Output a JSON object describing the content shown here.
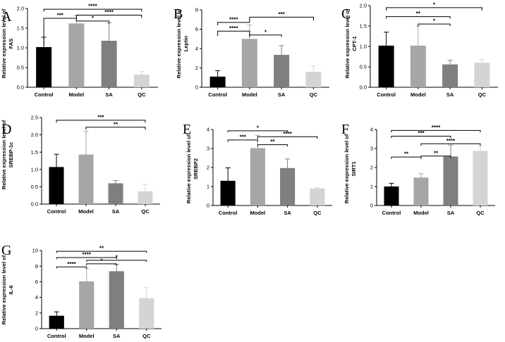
{
  "figure": {
    "colors": [
      "#000000",
      "#a6a6a7",
      "#7f7f80",
      "#d4d4d4"
    ]
  },
  "chart_data": [
    {
      "type": "bar",
      "panel": "A",
      "ylabel_line1": "Relative expression level of",
      "ylabel_line2": "FAS",
      "categories": [
        "Control",
        "Model",
        "SA",
        "QC"
      ],
      "values": [
        1.02,
        1.62,
        1.18,
        0.32
      ],
      "errors": [
        0.25,
        0.2,
        0.45,
        0.08
      ],
      "ylim": [
        0,
        2.0
      ],
      "yticks": [
        "0.0",
        "0.5",
        "1.0",
        "1.5",
        "2.0"
      ],
      "significance": [
        {
          "from": 0,
          "to": 1,
          "label": "***",
          "level": 1.75,
          "anchor_from": 1.06,
          "anchor_to": 1.69
        },
        {
          "from": 1,
          "to": 2,
          "label": "*",
          "level": 1.68,
          "anchor_from": 1.69,
          "anchor_to": 1.62
        },
        {
          "from": 0,
          "to": 3,
          "label": "****",
          "level": 1.98,
          "anchor_from": 1.92,
          "anchor_to": 1.92
        },
        {
          "from": 1,
          "to": 3,
          "label": "****",
          "level": 1.83,
          "anchor_from": 1.76,
          "anchor_to": 1.76
        }
      ]
    },
    {
      "type": "bar",
      "panel": "B",
      "ylabel_line1": "Relative expression level of",
      "ylabel_line2": "Leptin",
      "categories": [
        "Control",
        "Model",
        "SA",
        "QC"
      ],
      "values": [
        1.1,
        5.0,
        3.35,
        1.6
      ],
      "errors": [
        0.62,
        1.45,
        0.95,
        0.6
      ],
      "ylim": [
        0,
        8
      ],
      "yticks": [
        "0",
        "2",
        "4",
        "6",
        "8"
      ],
      "significance": [
        {
          "from": 0,
          "to": 1,
          "label": "****",
          "level": 5.8,
          "anchor_from": 5.3,
          "anchor_to": 5.3
        },
        {
          "from": 1,
          "to": 2,
          "label": "*",
          "level": 5.4,
          "anchor_from": 5.2,
          "anchor_to": 5.2
        },
        {
          "from": 0,
          "to": 1,
          "label": "****",
          "level": 6.7,
          "anchor_from": 6.4,
          "anchor_to": 6.7
        },
        {
          "from": 1,
          "to": 3,
          "label": "***",
          "level": 7.25,
          "anchor_from": 6.7,
          "anchor_to": 6.9
        }
      ]
    },
    {
      "type": "bar",
      "panel": "C",
      "ylabel_line1": "Relative expression level of",
      "ylabel_line2": "CPT-1",
      "categories": [
        "Control",
        "Model",
        "SA",
        "QC"
      ],
      "values": [
        1.02,
        1.02,
        0.56,
        0.6
      ],
      "errors": [
        0.33,
        0.48,
        0.1,
        0.08
      ],
      "ylim": [
        0,
        2.0
      ],
      "yticks": [
        "0.0",
        "0.5",
        "1.0",
        "1.5",
        "2.0"
      ],
      "significance": [
        {
          "from": 0,
          "to": 2,
          "label": "**",
          "level": 1.73,
          "anchor_from": 1.68,
          "anchor_to": 1.68
        },
        {
          "from": 1,
          "to": 2,
          "label": "*",
          "level": 1.55,
          "anchor_from": 1.5,
          "anchor_to": 1.5
        },
        {
          "from": 0,
          "to": 3,
          "label": "*",
          "level": 1.95,
          "anchor_from": 1.88,
          "anchor_to": 1.88
        }
      ]
    },
    {
      "type": "bar",
      "panel": "D",
      "ylabel_line1": "Relative expression level of",
      "ylabel_line2": "SREBP-1c",
      "categories": [
        "Control",
        "Model",
        "SA",
        "QC"
      ],
      "values": [
        1.07,
        1.43,
        0.6,
        0.37
      ],
      "errors": [
        0.37,
        0.67,
        0.08,
        0.2
      ],
      "ylim": [
        0,
        2.5
      ],
      "yticks": [
        "0.0",
        "0.5",
        "1.0",
        "1.5",
        "2.0",
        "2.5"
      ],
      "significance": [
        {
          "from": 0,
          "to": 3,
          "label": "***",
          "level": 2.42,
          "anchor_from": 2.35,
          "anchor_to": 2.35
        },
        {
          "from": 1,
          "to": 3,
          "label": "**",
          "level": 2.22,
          "anchor_from": 2.15,
          "anchor_to": 2.15
        }
      ]
    },
    {
      "type": "bar",
      "panel": "E",
      "ylabel_line1": "Relative expression level of",
      "ylabel_line2": "SREBP2",
      "categories": [
        "Control",
        "Model",
        "SA",
        "QC"
      ],
      "values": [
        1.3,
        3.02,
        1.97,
        0.9
      ],
      "errors": [
        0.68,
        0.67,
        0.48,
        0.04
      ],
      "ylim": [
        0,
        4
      ],
      "yticks": [
        "0",
        "1",
        "2",
        "3",
        "4"
      ],
      "significance": [
        {
          "from": 0,
          "to": 2,
          "label": "*",
          "level": 3.93,
          "anchor_from": 3.85,
          "anchor_to": 3.85
        },
        {
          "from": 0,
          "to": 1,
          "label": "***",
          "level": 3.45,
          "anchor_from": 3.35,
          "anchor_to": 3.35
        },
        {
          "from": 1,
          "to": 2,
          "label": "**",
          "level": 3.2,
          "anchor_from": 3.1,
          "anchor_to": 3.1
        },
        {
          "from": 1,
          "to": 3,
          "label": "****",
          "level": 3.62,
          "anchor_from": 3.52,
          "anchor_to": 3.52
        }
      ]
    },
    {
      "type": "bar",
      "panel": "F",
      "ylabel_line1": "Relative expression level of",
      "ylabel_line2": "SIRT1",
      "categories": [
        "Control",
        "Model",
        "SA",
        "QC"
      ],
      "values": [
        1.0,
        1.47,
        2.58,
        2.87
      ],
      "errors": [
        0.17,
        0.2,
        0.6,
        0.25
      ],
      "ylim": [
        0,
        4
      ],
      "yticks": [
        "0",
        "1",
        "2",
        "3",
        "4"
      ],
      "significance": [
        {
          "from": 0,
          "to": 1,
          "label": "**",
          "level": 2.55,
          "anchor_from": 2.45,
          "anchor_to": 2.45
        },
        {
          "from": 1,
          "to": 2,
          "label": "**",
          "level": 2.6,
          "anchor_from": 2.5,
          "anchor_to": 2.5
        },
        {
          "from": 0,
          "to": 3,
          "label": "****",
          "level": 3.95,
          "anchor_from": 3.85,
          "anchor_to": 3.85
        },
        {
          "from": 0,
          "to": 2,
          "label": "***",
          "level": 3.65,
          "anchor_from": 3.55,
          "anchor_to": 3.55
        },
        {
          "from": 1,
          "to": 3,
          "label": "****",
          "level": 3.25,
          "anchor_from": 3.15,
          "anchor_to": 3.15
        }
      ]
    },
    {
      "type": "bar",
      "panel": "G",
      "ylabel_line1": "Relative expression level of",
      "ylabel_line2": "IL-6",
      "categories": [
        "Control",
        "Model",
        "SA",
        "QC"
      ],
      "values": [
        1.65,
        6.05,
        7.35,
        3.9
      ],
      "errors": [
        0.5,
        1.65,
        0.85,
        1.35
      ],
      "ylim": [
        0,
        10
      ],
      "yticks": [
        "0",
        "2",
        "4",
        "6",
        "8",
        "10"
      ],
      "significance": [
        {
          "from": 0,
          "to": 1,
          "label": "****",
          "level": 7.9,
          "anchor_from": 7.7,
          "anchor_to": 7.7
        },
        {
          "from": 1,
          "to": 2,
          "label": "*",
          "level": 8.3,
          "anchor_from": 8.1,
          "anchor_to": 8.1
        },
        {
          "from": 0,
          "to": 2,
          "label": "****",
          "level": 9.1,
          "anchor_from": 8.9,
          "anchor_to": 8.9
        },
        {
          "from": 0,
          "to": 3,
          "label": "**",
          "level": 9.9,
          "anchor_from": 9.7,
          "anchor_to": 9.7
        },
        {
          "from": 1,
          "to": 3,
          "label": "*",
          "level": 8.75,
          "anchor_from": 8.55,
          "anchor_to": 8.55
        }
      ]
    }
  ]
}
